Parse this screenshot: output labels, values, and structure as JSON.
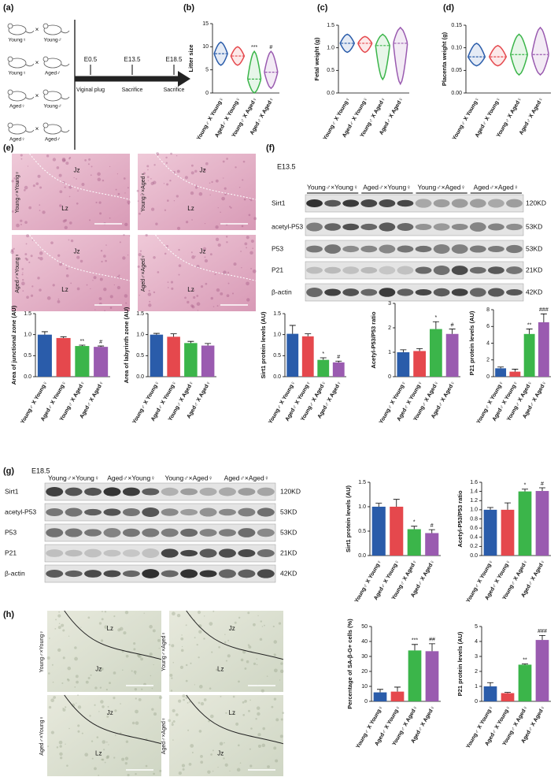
{
  "panel_labels": [
    "(a)",
    "(b)",
    "(c)",
    "(d)",
    "(e)",
    "(f)",
    "(g)",
    "(h)"
  ],
  "schematic": {
    "pairs": [
      [
        "Young♀",
        "Young♂"
      ],
      [
        "Young♀",
        "Aged♂"
      ],
      [
        "Aged♀",
        "Young♂"
      ],
      [
        "Aged♀",
        "Aged♂"
      ]
    ],
    "cross": "×",
    "timeline": [
      {
        "day": "E0.5",
        "event": "Viginal plug"
      },
      {
        "day": "E13.5",
        "event": "Sacrifice"
      },
      {
        "day": "E18.5",
        "event": "Sacrifice"
      }
    ]
  },
  "histology": [
    {
      "images": [
        {
          "label": "Young♂×Young♀",
          "zones": [
            "Jz",
            "Lz"
          ]
        },
        {
          "label": "Young♂×Aged♀",
          "zones": [
            "Jz",
            "Lz"
          ]
        },
        {
          "label": "Aged♂×Young♀",
          "zones": [
            "Jz",
            "Lz"
          ]
        },
        {
          "label": "Aged♂×Aged♀",
          "zones": [
            "Jz",
            "Lz"
          ]
        }
      ]
    },
    {
      "images": [
        {
          "label": "Young♂×Young♀",
          "zones": [
            "Lz",
            "Jz"
          ]
        },
        {
          "label": "Young♂×Aged♀",
          "zones": [
            "Jz",
            "Lz"
          ]
        },
        {
          "label": "Aged♂×Young♀",
          "zones": [
            "Jz",
            "Lz"
          ]
        },
        {
          "label": "Aged♂×Aged♀",
          "zones": [
            "Lz",
            "Jz"
          ]
        }
      ]
    }
  ],
  "blots": [
    {
      "stage": "E13.5",
      "groups": [
        "Young♂×Young♀",
        "Aged♂×Young♀",
        "Young♂×Aged♀",
        "Aged♂×Aged♀"
      ],
      "rows": [
        {
          "name": "Sirt1",
          "size": "120KD"
        },
        {
          "name": "acetyl-P53",
          "size": "53KD"
        },
        {
          "name": "P53",
          "size": "53KD"
        },
        {
          "name": "P21",
          "size": "21KD"
        },
        {
          "name": "β-actin",
          "size": "42KD"
        }
      ]
    },
    {
      "stage": "E18.5",
      "groups": [
        "Young♂×Young♀",
        "Aged♂×Young♀",
        "Young♂×Aged♀",
        "Aged♂×Aged♀"
      ],
      "rows": [
        {
          "name": "Sirt1",
          "size": "120KD"
        },
        {
          "name": "acetyl-P53",
          "size": "53KD"
        },
        {
          "name": "P53",
          "size": "53KD"
        },
        {
          "name": "P21",
          "size": "21KD"
        },
        {
          "name": "β-actin",
          "size": "42KD"
        }
      ]
    }
  ],
  "chart_data": [
    {
      "type": "violin",
      "ylabel": "Litter size",
      "categories": [
        "Young♂ X Young♀",
        "Aged♂ X Young♀",
        "Young♂ X Aged♀",
        "Aged♂ X Aged♀"
      ],
      "values": [
        8.5,
        8,
        3,
        4.5
      ],
      "mins": [
        6,
        6,
        0,
        1
      ],
      "maxs": [
        11,
        10,
        9,
        9
      ],
      "annotations": [
        null,
        null,
        "***",
        "#"
      ],
      "colors": [
        "#2a5caa",
        "#e5484d",
        "#3bb54a",
        "#9a5bb0"
      ],
      "ylim": [
        0,
        15
      ],
      "yticks": [
        0,
        5,
        10,
        15
      ]
    },
    {
      "type": "violin",
      "ylabel": "Fetal weight (g)",
      "categories": [
        "Young♂ X Young♀",
        "Aged♂ X Young♀",
        "Young♂ X Aged♀",
        "Aged♂ X Aged♀"
      ],
      "values": [
        1.1,
        1.1,
        1.05,
        1.1
      ],
      "mins": [
        0.9,
        0.9,
        0.3,
        0.2
      ],
      "maxs": [
        1.3,
        1.25,
        1.3,
        1.45
      ],
      "annotations": [
        null,
        null,
        null,
        null
      ],
      "colors": [
        "#2a5caa",
        "#e5484d",
        "#3bb54a",
        "#9a5bb0"
      ],
      "ylim": [
        0,
        1.5
      ],
      "yticks": [
        {
          "value": 0,
          "label": "0.0"
        },
        {
          "value": 0.5,
          "label": "0.5"
        },
        {
          "value": 1,
          "label": "1.0"
        },
        {
          "value": 1.5,
          "label": "1.5"
        }
      ]
    },
    {
      "type": "violin",
      "ylabel": "Placenta weight (g)",
      "categories": [
        "Young♂ X Young♀",
        "Aged♂ X Young♀",
        "Young♂ X Aged♀",
        "Aged♂ X Aged♀"
      ],
      "values": [
        0.08,
        0.08,
        0.085,
        0.085
      ],
      "mins": [
        0.06,
        0.06,
        0.04,
        0.04
      ],
      "maxs": [
        0.11,
        0.105,
        0.13,
        0.145
      ],
      "annotations": [
        null,
        null,
        null,
        null
      ],
      "colors": [
        "#2a5caa",
        "#e5484d",
        "#3bb54a",
        "#9a5bb0"
      ],
      "ylim": [
        0,
        0.15
      ],
      "yticks": [
        {
          "value": 0,
          "label": "0.00"
        },
        {
          "value": 0.05,
          "label": "0.05"
        },
        {
          "value": 0.1,
          "label": "0.10"
        },
        {
          "value": 0.15,
          "label": "0.15"
        }
      ]
    },
    {
      "type": "bar",
      "ylabel": "Area of junctional zone (AU)",
      "categories": [
        "Young♂ X Young♀",
        "Aged♂ X Young♀",
        "Young♂ X Aged♀",
        "Aged♂ X Aged♀"
      ],
      "values": [
        1.0,
        0.92,
        0.73,
        0.71
      ],
      "errors": [
        0.07,
        0.03,
        0.02,
        0.02
      ],
      "annotations": [
        null,
        null,
        "**",
        "#"
      ],
      "colors": [
        "#2a5caa",
        "#e5484d",
        "#3bb54a",
        "#9a5bb0"
      ],
      "ylim": [
        0,
        1.5
      ],
      "yticks": [
        {
          "value": 0,
          "label": "0.0"
        },
        {
          "value": 0.5,
          "label": "0.5"
        },
        {
          "value": 1,
          "label": "1.0"
        },
        {
          "value": 1.5,
          "label": "1.5"
        }
      ]
    },
    {
      "type": "bar",
      "ylabel": "Area of labyrinth zone (AU)",
      "categories": [
        "Young♂ X Young♀",
        "Aged♂ X Young♀",
        "Young♂ X Aged♀",
        "Aged♂ X Aged♀"
      ],
      "values": [
        1.0,
        0.95,
        0.8,
        0.74
      ],
      "errors": [
        0.03,
        0.07,
        0.04,
        0.05
      ],
      "annotations": [
        null,
        null,
        null,
        null
      ],
      "colors": [
        "#2a5caa",
        "#e5484d",
        "#3bb54a",
        "#9a5bb0"
      ],
      "ylim": [
        0,
        1.5
      ],
      "yticks": [
        {
          "value": 0,
          "label": "0.0"
        },
        {
          "value": 0.5,
          "label": "0.5"
        },
        {
          "value": 1,
          "label": "1.0"
        },
        {
          "value": 1.5,
          "label": "1.5"
        }
      ]
    },
    {
      "type": "bar",
      "ylabel": "Sirt1 protein levels (AU)",
      "categories": [
        "Young♂ X Young♀",
        "Aged♂ X Young♀",
        "Young♂ X Aged♀",
        "Aged♂ X Aged♀"
      ],
      "values": [
        1.02,
        0.96,
        0.4,
        0.34
      ],
      "errors": [
        0.2,
        0.06,
        0.05,
        0.03
      ],
      "annotations": [
        null,
        null,
        "*",
        "#"
      ],
      "colors": [
        "#2a5caa",
        "#e5484d",
        "#3bb54a",
        "#9a5bb0"
      ],
      "ylim": [
        0,
        1.5
      ],
      "yticks": [
        {
          "value": 0,
          "label": "0.0"
        },
        {
          "value": 0.5,
          "label": "0.5"
        },
        {
          "value": 1,
          "label": "1.0"
        },
        {
          "value": 1.5,
          "label": "1.5"
        }
      ]
    },
    {
      "type": "bar",
      "ylabel": "Acetyl-P53/P53 ratio",
      "categories": [
        "Young♂ X Young♀",
        "Aged♂ X Young♀",
        "Young♂ X Aged♀",
        "Aged♂ X Aged♀"
      ],
      "values": [
        1.0,
        1.05,
        1.95,
        1.75
      ],
      "errors": [
        0.1,
        0.1,
        0.3,
        0.2
      ],
      "annotations": [
        null,
        null,
        "*",
        "#"
      ],
      "colors": [
        "#2a5caa",
        "#e5484d",
        "#3bb54a",
        "#9a5bb0"
      ],
      "ylim": [
        0,
        3
      ],
      "yticks": [
        0,
        1,
        2,
        3
      ]
    },
    {
      "type": "bar",
      "ylabel": "P21 protein levels (AU)",
      "categories": [
        "Young♂ X Young♀",
        "Aged♂ X Young♀",
        "Young♂ X Aged♀",
        "Aged♂ X Aged♀"
      ],
      "values": [
        1.0,
        0.6,
        5.1,
        6.5
      ],
      "errors": [
        0.15,
        0.3,
        0.6,
        1.0
      ],
      "annotations": [
        null,
        null,
        "**",
        "###"
      ],
      "colors": [
        "#2a5caa",
        "#e5484d",
        "#3bb54a",
        "#9a5bb0"
      ],
      "ylim": [
        0,
        8
      ],
      "yticks": [
        0,
        2,
        4,
        6,
        8
      ]
    },
    {
      "type": "bar",
      "ylabel": "Sirt1 protein levels (AU)",
      "categories": [
        "Young♂ X Young♀",
        "Aged♂ X Young♀",
        "Young♂ X Aged♀",
        "Aged♂ X Aged♀"
      ],
      "values": [
        1.0,
        1.0,
        0.54,
        0.46
      ],
      "errors": [
        0.07,
        0.15,
        0.06,
        0.07
      ],
      "annotations": [
        null,
        null,
        "*",
        "#"
      ],
      "colors": [
        "#2a5caa",
        "#e5484d",
        "#3bb54a",
        "#9a5bb0"
      ],
      "ylim": [
        0,
        1.5
      ],
      "yticks": [
        {
          "value": 0,
          "label": "0.0"
        },
        {
          "value": 0.5,
          "label": "0.5"
        },
        {
          "value": 1,
          "label": "1.0"
        },
        {
          "value": 1.5,
          "label": "1.5"
        }
      ]
    },
    {
      "type": "bar",
      "ylabel": "Acetyl-P53/P53 ratio",
      "categories": [
        "Young♂ X Young♀",
        "Aged♂ X Young♀",
        "Young♂ X Aged♀",
        "Aged♂ X Aged♀"
      ],
      "values": [
        1.0,
        1.0,
        1.4,
        1.41
      ],
      "errors": [
        0.05,
        0.15,
        0.05,
        0.07
      ],
      "annotations": [
        null,
        null,
        "*",
        "#"
      ],
      "colors": [
        "#2a5caa",
        "#e5484d",
        "#3bb54a",
        "#9a5bb0"
      ],
      "ylim": [
        0,
        1.6
      ],
      "yticks": [
        {
          "value": 0,
          "label": "0.0"
        },
        {
          "value": 0.2,
          "label": "0.2"
        },
        {
          "value": 0.4,
          "label": "0.4"
        },
        {
          "value": 0.6,
          "label": "0.6"
        },
        {
          "value": 0.8,
          "label": "0.8"
        },
        {
          "value": 1,
          "label": "1.0"
        },
        {
          "value": 1.2,
          "label": "1.2"
        },
        {
          "value": 1.4,
          "label": "1.4"
        },
        {
          "value": 1.6,
          "label": "1.6"
        }
      ]
    },
    {
      "type": "bar",
      "ylabel": "Percentage of SA-β-G+ cells (%)",
      "categories": [
        "Young♂ X Young♀",
        "Aged♂ X Young♀",
        "Young♂ X Aged♀",
        "Aged♂ X Aged♀"
      ],
      "values": [
        6,
        6.5,
        34,
        33.5
      ],
      "errors": [
        2,
        3,
        4,
        5
      ],
      "annotations": [
        null,
        null,
        "***",
        "##"
      ],
      "colors": [
        "#2a5caa",
        "#e5484d",
        "#3bb54a",
        "#9a5bb0"
      ],
      "ylim": [
        0,
        50
      ],
      "yticks": [
        0,
        10,
        20,
        30,
        40,
        50
      ]
    },
    {
      "type": "bar",
      "ylabel": "P21 protein levels (AU)",
      "categories": [
        "Young♂ X Young♀",
        "Aged♂ X Young♀",
        "Young♂ X Aged♀",
        "Aged♂ X Aged♀"
      ],
      "values": [
        1.0,
        0.55,
        2.45,
        4.1
      ],
      "errors": [
        0.25,
        0.05,
        0.05,
        0.3
      ],
      "annotations": [
        null,
        null,
        "**",
        "###"
      ],
      "colors": [
        "#2a5caa",
        "#e5484d",
        "#3bb54a",
        "#9a5bb0"
      ],
      "ylim": [
        0,
        5
      ],
      "yticks": [
        0,
        1,
        2,
        3,
        4,
        5
      ]
    }
  ]
}
